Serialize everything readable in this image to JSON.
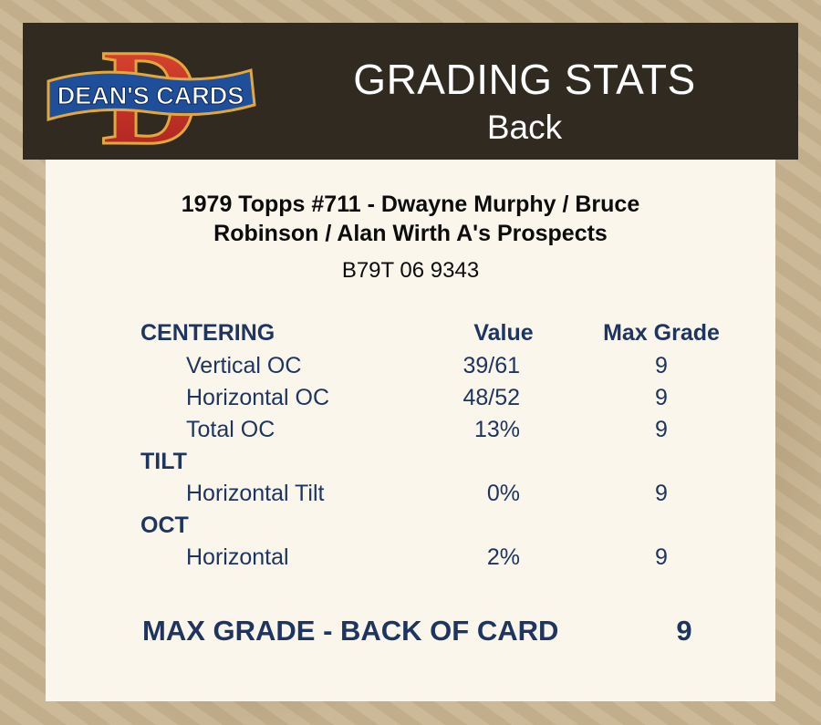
{
  "header": {
    "logo_text": "DEAN'S CARDS",
    "logo_letter": "D",
    "title": "GRADING STATS",
    "subtitle": "Back"
  },
  "card": {
    "name_line1": "1979 Topps #711  -  Dwayne Murphy / Bruce",
    "name_line2": "Robinson / Alan Wirth A's Prospects",
    "cert": "B79T 06 9343"
  },
  "table": {
    "col_value": "Value",
    "col_max": "Max Grade",
    "sections": [
      {
        "name": "CENTERING",
        "rows": [
          {
            "label": "Vertical OC",
            "value": "39/61",
            "max": "9"
          },
          {
            "label": "Horizontal OC",
            "value": "48/52",
            "max": "9"
          },
          {
            "label": "Total OC",
            "value": "13%",
            "max": "9"
          }
        ]
      },
      {
        "name": "TILT",
        "rows": [
          {
            "label": "Horizontal Tilt",
            "value": "0%",
            "max": "9"
          }
        ]
      },
      {
        "name": "OCT",
        "rows": [
          {
            "label": "Horizontal",
            "value": "2%",
            "max": "9"
          }
        ]
      }
    ]
  },
  "final": {
    "label": "MAX GRADE - BACK OF CARD",
    "value": "9"
  },
  "colors": {
    "header_bg": "#312a21",
    "panel_bg": "#fbf6ec",
    "text_navy": "#1e3560",
    "logo_red": "#c8322a",
    "logo_blue": "#1f4e9a",
    "logo_gold": "#e2a83c"
  }
}
